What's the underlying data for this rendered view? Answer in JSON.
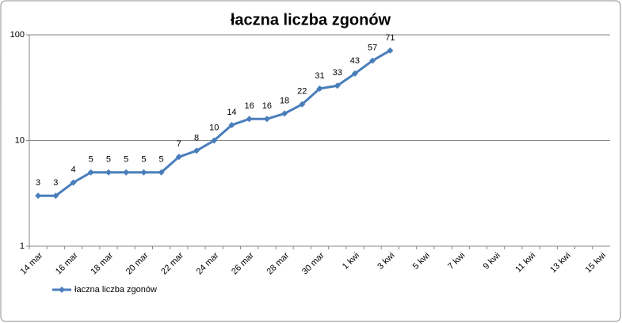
{
  "chart_data": {
    "type": "line",
    "title": "łaczna liczba zgonów",
    "categories": [
      "14 mar",
      null,
      "16 mar",
      null,
      "18 mar",
      null,
      "20 mar",
      null,
      "22 mar",
      null,
      "24 mar",
      null,
      "26 mar",
      null,
      "28 mar",
      null,
      "30 mar",
      null,
      "1 kwi",
      null,
      "3 kwi",
      null,
      "5 kwi",
      null,
      "7 kwi",
      null,
      "9 kwi",
      null,
      "11 kwi",
      null,
      "13 kwi",
      null,
      "15 kwi"
    ],
    "series": [
      {
        "name": "łaczna liczba zgonów",
        "color": "#4a7ebb",
        "values": [
          3,
          3,
          4,
          5,
          5,
          5,
          5,
          5,
          7,
          8,
          10,
          14,
          16,
          16,
          18,
          22,
          31,
          33,
          43,
          57,
          71,
          null,
          null,
          null,
          null,
          null,
          null,
          null,
          null,
          null,
          null,
          null,
          null
        ]
      }
    ],
    "ylim": [
      1,
      100
    ],
    "yticks": [
      1,
      10,
      100
    ],
    "log_y": true,
    "grid": true,
    "legend": "bottom-left"
  }
}
